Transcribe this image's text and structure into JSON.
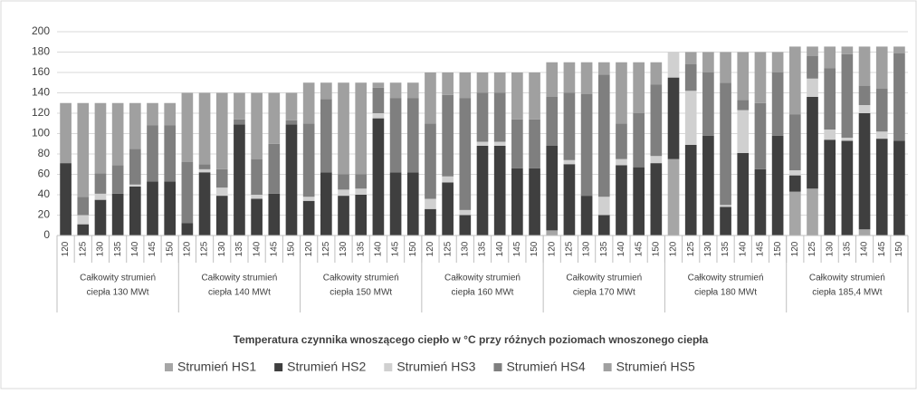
{
  "chart_data": {
    "type": "stacked_bar",
    "x_label": "Temperatura czynnika wnoszącego ciepło w °C przy różnych poziomach wnoszonego ciepła",
    "categories": [
      "120",
      "125",
      "130",
      "135",
      "140",
      "145",
      "150",
      "120",
      "125",
      "130",
      "135",
      "140",
      "145",
      "150",
      "120",
      "125",
      "130",
      "135",
      "140",
      "145",
      "150",
      "120",
      "125",
      "130",
      "135",
      "140",
      "145",
      "150",
      "120",
      "125",
      "130",
      "135",
      "140",
      "145",
      "150",
      "120",
      "125",
      "130",
      "135",
      "140",
      "145",
      "150",
      "120",
      "125",
      "130",
      "135",
      "140",
      "145",
      "150"
    ],
    "groups": [
      [
        "Całkowity strumień",
        "ciepła 130 MWt"
      ],
      [
        "Całkowity strumień",
        "ciepła 140 MWt"
      ],
      [
        "Całkowity strumień",
        "ciepła 150 MWt"
      ],
      [
        "Całkowity strumień",
        "ciepła 160 MWt"
      ],
      [
        "Całkowity strumień",
        "ciepła 170 MWt"
      ],
      [
        "Całkowity strumień",
        "ciepła 180 MWt"
      ],
      [
        "Całkowity strumień",
        "ciepła 185,4 MWt"
      ]
    ],
    "series": [
      {
        "name": "Strumień HS1",
        "color": "#a6a6a6",
        "values": [
          0,
          0,
          0,
          0,
          0,
          0,
          0,
          0,
          0,
          0,
          0,
          0,
          0,
          0,
          0,
          0,
          0,
          0,
          0,
          0,
          0,
          0,
          0,
          0,
          0,
          0,
          0,
          0,
          5,
          0,
          0,
          0,
          0,
          0,
          0,
          75,
          0,
          0,
          0,
          0,
          0,
          0,
          43,
          46,
          0,
          0,
          6,
          0,
          0
        ]
      },
      {
        "name": "Strumień HS2",
        "color": "#3f3f3f",
        "values": [
          71,
          11,
          35,
          41,
          48,
          53,
          53,
          12,
          62,
          39,
          109,
          36,
          41,
          109,
          34,
          62,
          39,
          40,
          115,
          62,
          62,
          26,
          52,
          20,
          88,
          88,
          66,
          66,
          83,
          70,
          39,
          20,
          69,
          67,
          71,
          80,
          89,
          98,
          28,
          81,
          65,
          98,
          16,
          90,
          94,
          93,
          114,
          95,
          93
        ]
      },
      {
        "name": "Strumień HS3",
        "color": "#d0d0d0",
        "values": [
          0,
          9,
          6,
          0,
          2,
          0,
          0,
          0,
          3,
          8,
          0,
          4,
          0,
          0,
          4,
          0,
          6,
          6,
          5,
          0,
          0,
          10,
          6,
          5,
          4,
          4,
          0,
          0,
          0,
          4,
          0,
          18,
          6,
          0,
          7,
          25,
          53,
          0,
          2,
          42,
          0,
          0,
          5,
          18,
          10,
          3,
          8,
          7,
          0
        ]
      },
      {
        "name": "Strumień HS4",
        "color": "#7f7f7f",
        "values": [
          0,
          18,
          20,
          28,
          35,
          55,
          55,
          60,
          5,
          18,
          5,
          35,
          49,
          4,
          72,
          72,
          15,
          14,
          25,
          73,
          73,
          74,
          80,
          110,
          48,
          48,
          48,
          48,
          48,
          66,
          100,
          120,
          35,
          53,
          70,
          0,
          26,
          62,
          120,
          10,
          65,
          62,
          55,
          22,
          60,
          82,
          19,
          42,
          86
        ]
      },
      {
        "name": "Strumień HS5",
        "color": "#a0a0a0",
        "values": [
          59,
          92,
          69,
          61,
          45,
          22,
          22,
          68,
          70,
          75,
          26,
          65,
          50,
          27,
          40,
          16,
          90,
          90,
          5,
          15,
          15,
          50,
          22,
          25,
          20,
          20,
          46,
          46,
          34,
          30,
          31,
          12,
          60,
          50,
          22,
          0,
          12,
          20,
          30,
          47,
          50,
          20,
          66.4,
          9.4,
          21.4,
          7.4,
          38.4,
          41.4,
          6.4
        ]
      }
    ],
    "ylim": [
      0,
      200
    ],
    "yticks": [
      0,
      20,
      40,
      60,
      80,
      100,
      120,
      140,
      160,
      180,
      200
    ],
    "grid": true
  }
}
